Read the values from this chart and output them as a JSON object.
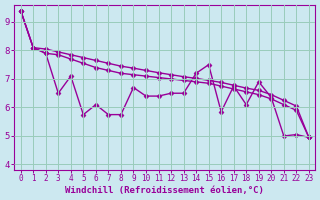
{
  "title": "",
  "xlabel": "Windchill (Refroidissement éolien,°C)",
  "ylabel": "",
  "background_color": "#cce8f0",
  "line_color": "#990099",
  "grid_color": "#99ccbb",
  "xlim": [
    -0.5,
    23.5
  ],
  "ylim": [
    3.8,
    9.6
  ],
  "yticks": [
    4,
    5,
    6,
    7,
    8,
    9
  ],
  "xticks": [
    0,
    1,
    2,
    3,
    4,
    5,
    6,
    7,
    8,
    9,
    10,
    11,
    12,
    13,
    14,
    15,
    16,
    17,
    18,
    19,
    20,
    21,
    22,
    23
  ],
  "series1": [
    9.4,
    8.1,
    7.9,
    6.5,
    7.1,
    5.75,
    6.1,
    5.75,
    5.75,
    6.7,
    6.4,
    6.4,
    6.5,
    6.5,
    7.2,
    7.5,
    5.85,
    6.75,
    6.1,
    6.9,
    6.35,
    5.0,
    5.05,
    4.95
  ],
  "series2": [
    9.4,
    8.1,
    7.9,
    7.85,
    7.7,
    7.55,
    7.4,
    7.3,
    7.2,
    7.15,
    7.1,
    7.05,
    7.0,
    6.95,
    6.9,
    6.85,
    6.75,
    6.65,
    6.55,
    6.45,
    6.3,
    6.1,
    5.9,
    4.95
  ],
  "series3": [
    9.4,
    8.1,
    8.05,
    7.95,
    7.85,
    7.75,
    7.65,
    7.55,
    7.45,
    7.38,
    7.3,
    7.22,
    7.15,
    7.08,
    7.02,
    6.95,
    6.88,
    6.78,
    6.68,
    6.6,
    6.45,
    6.25,
    6.05,
    4.95
  ],
  "marker": "D",
  "markersize": 2.5,
  "linewidth": 1.0,
  "tick_fontsize": 5.5,
  "label_fontsize": 6.5
}
